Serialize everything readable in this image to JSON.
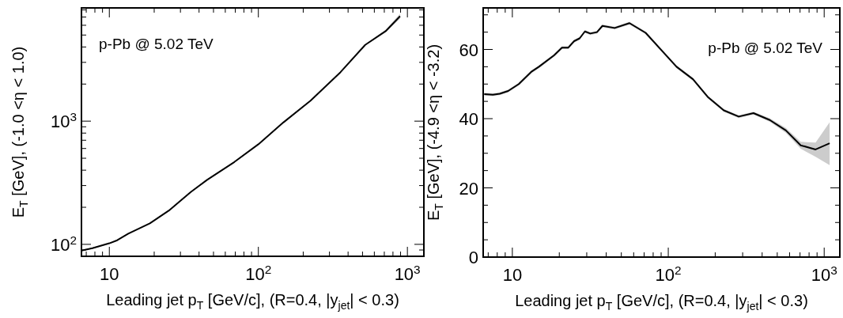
{
  "chart_data": [
    {
      "type": "line",
      "xlabel": "Leading jet p$_{T}$ [GeV/c], (R=0.4, |y$_{jet}$| < 0.3)",
      "ylabel": "E$_{T}$ [GeV], (-1.0 <η < 1.0)",
      "annotations": [
        "p-Pb @ 5.02 TeV"
      ],
      "log": "xy",
      "grid": false,
      "marker": "none",
      "line_style": "solid",
      "xlim": [
        6.5,
        1290
      ],
      "ylim": [
        80,
        8300
      ],
      "xticks": [
        {
          "value": 7,
          "label": null
        },
        {
          "value": 8,
          "label": null
        },
        {
          "value": 9,
          "label": null
        },
        10,
        {
          "value": 20,
          "label": null
        },
        {
          "value": 30,
          "label": null
        },
        {
          "value": 40,
          "label": null
        },
        {
          "value": 50,
          "label": null
        },
        {
          "value": 60,
          "label": null
        },
        {
          "value": 70,
          "label": null
        },
        {
          "value": 80,
          "label": null
        },
        {
          "value": 90,
          "label": null
        },
        {
          "value": 100,
          "label": "10$^{2}$"
        },
        {
          "value": 200,
          "label": null
        },
        {
          "value": 300,
          "label": null
        },
        {
          "value": 400,
          "label": null
        },
        {
          "value": 500,
          "label": null
        },
        {
          "value": 600,
          "label": null
        },
        {
          "value": 700,
          "label": null
        },
        {
          "value": 800,
          "label": null
        },
        {
          "value": 900,
          "label": null
        },
        {
          "value": 1000,
          "label": "10$^{3}$"
        }
      ],
      "yticks": [
        {
          "value": 90,
          "label": null
        },
        {
          "value": 100,
          "label": "10$^{2}$"
        },
        {
          "value": 200,
          "label": null
        },
        {
          "value": 300,
          "label": null
        },
        {
          "value": 400,
          "label": null
        },
        {
          "value": 500,
          "label": null
        },
        {
          "value": 600,
          "label": null
        },
        {
          "value": 700,
          "label": null
        },
        {
          "value": 800,
          "label": null
        },
        {
          "value": 900,
          "label": null
        },
        {
          "value": 1000,
          "label": "10$^{3}$"
        },
        {
          "value": 2000,
          "label": null
        },
        {
          "value": 3000,
          "label": null
        },
        {
          "value": 4000,
          "label": null
        },
        {
          "value": 5000,
          "label": null
        },
        {
          "value": 6000,
          "label": null
        },
        {
          "value": 7000,
          "label": null
        },
        {
          "value": 8000,
          "label": null
        }
      ],
      "x": [
        6.5,
        7.7,
        10,
        11.3,
        13.4,
        18.7,
        25.1,
        35.2,
        45.3,
        69,
        100,
        147,
        224,
        356,
        521,
        714,
        893
      ],
      "series": [
        {
          "color": "#000000",
          "values": [
            89,
            93,
            102,
            108,
            122,
            148,
            188,
            266,
            334,
            466,
            649,
            975,
            1466,
            2500,
            4160,
            5370,
            7110
          ],
          "lower": [
            88,
            92,
            101,
            107,
            121,
            147,
            186,
            264,
            331,
            462,
            644,
            967,
            1452,
            2475,
            4110,
            5250,
            6800
          ],
          "upper": [
            90,
            94,
            103,
            109,
            123,
            149,
            190,
            268,
            337,
            470,
            654,
            983,
            1480,
            2525,
            4210,
            5500,
            7450
          ]
        }
      ]
    },
    {
      "type": "line",
      "xlabel": "Leading jet p$_{T}$ [GeV/c], (R=0.4, |y$_{jet}$| < 0.3)",
      "ylabel": "E$_{T}$ [GeV], (-4.9 <η < -3.2)",
      "annotations": [
        "p-Pb @ 5.02 TeV"
      ],
      "log": "x",
      "grid": false,
      "marker": "none",
      "line_style": "solid",
      "xlim": [
        6.5,
        1260
      ],
      "ylim": [
        0,
        72
      ],
      "xticks": [
        {
          "value": 7,
          "label": null
        },
        {
          "value": 8,
          "label": null
        },
        {
          "value": 9,
          "label": null
        },
        10,
        {
          "value": 20,
          "label": null
        },
        {
          "value": 30,
          "label": null
        },
        {
          "value": 40,
          "label": null
        },
        {
          "value": 50,
          "label": null
        },
        {
          "value": 60,
          "label": null
        },
        {
          "value": 70,
          "label": null
        },
        {
          "value": 80,
          "label": null
        },
        {
          "value": 90,
          "label": null
        },
        {
          "value": 100,
          "label": "10$^{2}$"
        },
        {
          "value": 200,
          "label": null
        },
        {
          "value": 300,
          "label": null
        },
        {
          "value": 400,
          "label": null
        },
        {
          "value": 500,
          "label": null
        },
        {
          "value": 600,
          "label": null
        },
        {
          "value": 700,
          "label": null
        },
        {
          "value": 800,
          "label": null
        },
        {
          "value": 900,
          "label": null
        },
        {
          "value": 1000,
          "label": "10$^{3}$"
        }
      ],
      "yticks": [
        0,
        {
          "value": 5,
          "label": null
        },
        {
          "value": 10,
          "label": null
        },
        {
          "value": 15,
          "label": null
        },
        20,
        {
          "value": 25,
          "label": null
        },
        {
          "value": 30,
          "label": null
        },
        {
          "value": 35,
          "label": null
        },
        40,
        {
          "value": 45,
          "label": null
        },
        {
          "value": 50,
          "label": null
        },
        {
          "value": 55,
          "label": null
        },
        60,
        {
          "value": 65,
          "label": null
        },
        {
          "value": 70,
          "label": null
        }
      ],
      "x": [
        6.6,
        7.5,
        8.3,
        9.4,
        11.0,
        13.2,
        14.8,
        18.5,
        20.8,
        22.8,
        24.9,
        27.0,
        29.2,
        31.6,
        34.9,
        37.8,
        45.3,
        56.4,
        71.6,
        90.8,
        113,
        144,
        179,
        227,
        283,
        352,
        448,
        568,
        707,
        881,
        1084
      ],
      "series": [
        {
          "color": "#000000",
          "values": [
            47.1,
            46.9,
            47.2,
            48.0,
            50.0,
            53.5,
            55.0,
            58.3,
            60.5,
            60.5,
            62.4,
            63.2,
            65.2,
            64.6,
            65.0,
            66.8,
            66.2,
            67.6,
            64.8,
            59.7,
            55.0,
            51.4,
            46.3,
            42.4,
            40.6,
            41.6,
            39.6,
            36.6,
            32.3,
            31.1,
            32.9
          ],
          "lower": [
            46.7,
            46.5,
            46.8,
            47.6,
            49.6,
            53.1,
            54.6,
            57.9,
            60.1,
            60.1,
            62.0,
            62.8,
            64.8,
            64.2,
            64.6,
            66.4,
            65.8,
            67.2,
            64.4,
            59.3,
            54.6,
            51.0,
            45.9,
            42.0,
            40.2,
            41.2,
            39.1,
            35.9,
            31.3,
            29.0,
            26.6
          ],
          "upper": [
            47.5,
            47.3,
            47.6,
            48.4,
            50.4,
            53.9,
            55.4,
            58.7,
            60.9,
            60.9,
            62.8,
            63.6,
            65.6,
            65.0,
            65.4,
            67.2,
            66.6,
            68.0,
            65.2,
            60.1,
            55.4,
            51.8,
            46.7,
            42.8,
            41.0,
            42.0,
            40.1,
            37.3,
            33.3,
            33.1,
            39.0
          ]
        }
      ]
    }
  ]
}
